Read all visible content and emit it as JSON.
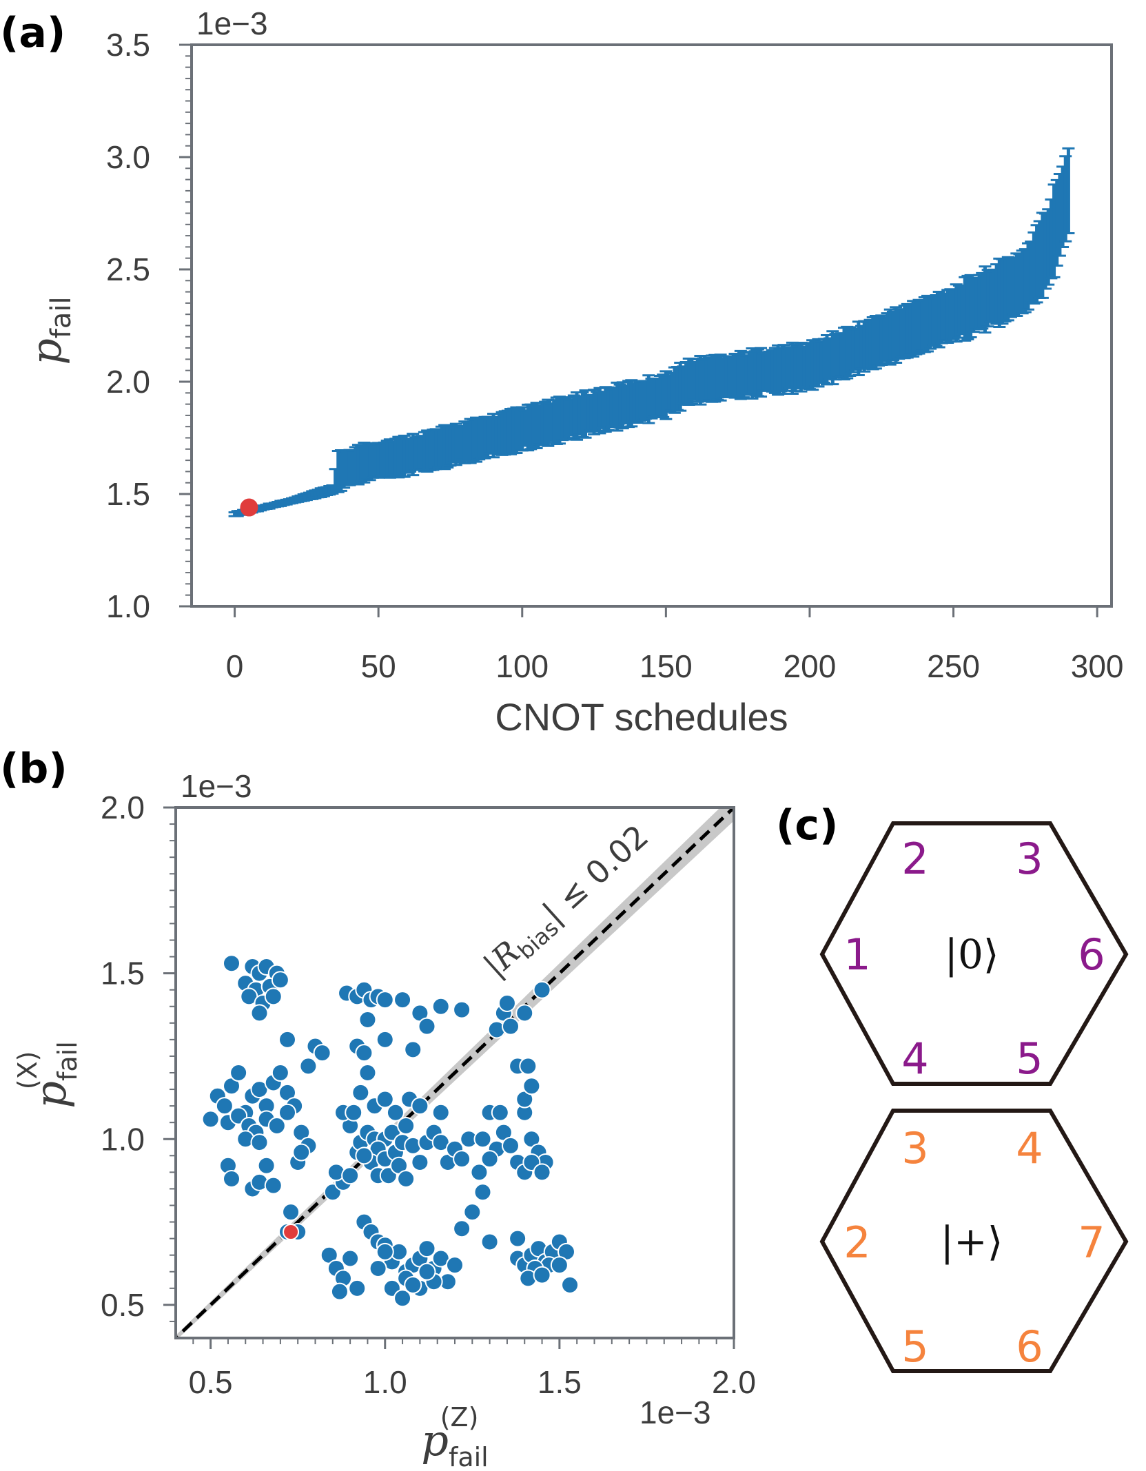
{
  "panels": {
    "a": "(a)",
    "b": "(b)",
    "c": "(c)"
  },
  "colors": {
    "series": "#1f77b4",
    "highlight": "#e03c3c",
    "spine": "#6b7077",
    "purple": "#8b1a8b",
    "orange": "#f5833d",
    "band": "#c8c8c8"
  },
  "chart_data": [
    {
      "type": "scatter",
      "panel": "a",
      "description_type": "errorbar",
      "xlabel": "CNOT schedules",
      "ylabel": "p",
      "ylabel_sub": "fail",
      "y_scale_label": "1e−3",
      "xlim": [
        -15,
        305
      ],
      "ylim": [
        1.0,
        3.5
      ],
      "xticks": [
        0,
        50,
        100,
        150,
        200,
        250,
        300
      ],
      "xtick_labels": [
        "0",
        "50",
        "100",
        "150",
        "200",
        "250",
        "300"
      ],
      "yticks": [
        1.0,
        1.5,
        2.0,
        2.5,
        3.0,
        3.5
      ],
      "ytick_labels": [
        "1.0",
        "1.5",
        "2.0",
        "2.5",
        "3.0",
        "3.5"
      ],
      "n_points": 291,
      "curve_y": [
        [
          0,
          1.41
        ],
        [
          20,
          1.47
        ],
        [
          34,
          1.52
        ],
        [
          36,
          1.6
        ],
        [
          45,
          1.64
        ],
        [
          60,
          1.67
        ],
        [
          100,
          1.79
        ],
        [
          150,
          1.94
        ],
        [
          158,
          2.0
        ],
        [
          200,
          2.07
        ],
        [
          250,
          2.3
        ],
        [
          275,
          2.45
        ],
        [
          283,
          2.6
        ],
        [
          290,
          2.85
        ]
      ],
      "err_half": [
        [
          0,
          0.01
        ],
        [
          20,
          0.01
        ],
        [
          34,
          0.02
        ],
        [
          36,
          0.08
        ],
        [
          100,
          0.09
        ],
        [
          200,
          0.1
        ],
        [
          250,
          0.12
        ],
        [
          275,
          0.14
        ],
        [
          283,
          0.18
        ],
        [
          290,
          0.2
        ]
      ],
      "highlight": {
        "x": 5,
        "y": 1.44
      }
    },
    {
      "type": "scatter",
      "panel": "b",
      "xlabel": "p",
      "xlabel_sub": "fail",
      "xlabel_sup": "(Z)",
      "ylabel": "p",
      "ylabel_sub": "fail",
      "ylabel_sup": "(X)",
      "x_scale_label": "1e−3",
      "y_scale_label": "1e−3",
      "xlim": [
        0.4,
        2.0
      ],
      "ylim": [
        0.4,
        2.0
      ],
      "xticks": [
        0.5,
        1.0,
        1.5,
        2.0
      ],
      "xtick_labels": [
        "0.5",
        "1.0",
        "1.5",
        "2.0"
      ],
      "yticks": [
        0.5,
        1.0,
        1.5,
        2.0
      ],
      "ytick_labels": [
        "0.5",
        "1.0",
        "1.5",
        "2.0"
      ],
      "annotation": {
        "prefix": "|R",
        "sub": "bias",
        "suffix": "| ≤ 0.02"
      },
      "band_rel_halfwidth": 0.02,
      "reference_line": "y = x",
      "points": [
        [
          0.56,
          1.53
        ],
        [
          0.62,
          1.52
        ],
        [
          0.64,
          1.5
        ],
        [
          0.66,
          1.52
        ],
        [
          0.69,
          1.5
        ],
        [
          0.6,
          1.47
        ],
        [
          0.63,
          1.45
        ],
        [
          0.67,
          1.46
        ],
        [
          0.7,
          1.48
        ],
        [
          0.61,
          1.43
        ],
        [
          0.65,
          1.41
        ],
        [
          0.68,
          1.43
        ],
        [
          0.64,
          1.38
        ],
        [
          0.72,
          1.3
        ],
        [
          0.52,
          1.13
        ],
        [
          0.54,
          1.1
        ],
        [
          0.56,
          1.16
        ],
        [
          0.58,
          1.2
        ],
        [
          0.6,
          1.08
        ],
        [
          0.62,
          1.13
        ],
        [
          0.64,
          1.15
        ],
        [
          0.66,
          1.1
        ],
        [
          0.68,
          1.17
        ],
        [
          0.7,
          1.2
        ],
        [
          0.72,
          1.14
        ],
        [
          0.74,
          1.1
        ],
        [
          0.5,
          1.06
        ],
        [
          0.55,
          1.05
        ],
        [
          0.58,
          1.07
        ],
        [
          0.61,
          1.04
        ],
        [
          0.63,
          1.02
        ],
        [
          0.66,
          1.06
        ],
        [
          0.69,
          1.04
        ],
        [
          0.72,
          1.08
        ],
        [
          0.76,
          1.02
        ],
        [
          0.78,
          0.98
        ],
        [
          0.6,
          1.0
        ],
        [
          0.64,
          0.99
        ],
        [
          0.55,
          0.92
        ],
        [
          0.56,
          0.88
        ],
        [
          0.62,
          0.85
        ],
        [
          0.64,
          0.87
        ],
        [
          0.66,
          0.92
        ],
        [
          0.68,
          0.86
        ],
        [
          0.75,
          0.93
        ],
        [
          0.76,
          0.96
        ],
        [
          0.85,
          0.84
        ],
        [
          0.88,
          0.87
        ],
        [
          0.86,
          0.9
        ],
        [
          0.9,
          0.89
        ],
        [
          0.92,
          0.96
        ],
        [
          0.93,
          0.99
        ],
        [
          0.95,
          1.02
        ],
        [
          0.97,
          1.0
        ],
        [
          1.0,
          1.0
        ],
        [
          1.02,
          1.02
        ],
        [
          0.98,
          0.97
        ],
        [
          0.96,
          0.93
        ],
        [
          0.94,
          0.95
        ],
        [
          1.0,
          0.94
        ],
        [
          1.03,
          0.96
        ],
        [
          1.05,
          0.99
        ],
        [
          1.06,
          1.04
        ],
        [
          1.08,
          0.98
        ],
        [
          1.1,
          0.93
        ],
        [
          1.12,
          0.99
        ],
        [
          1.14,
          1.02
        ],
        [
          1.16,
          0.99
        ],
        [
          1.18,
          0.93
        ],
        [
          1.2,
          0.97
        ],
        [
          1.22,
          0.94
        ],
        [
          1.24,
          1.0
        ],
        [
          0.98,
          0.89
        ],
        [
          1.01,
          0.89
        ],
        [
          1.04,
          0.92
        ],
        [
          1.06,
          0.88
        ],
        [
          0.9,
          1.04
        ],
        [
          0.88,
          1.08
        ],
        [
          0.91,
          1.08
        ],
        [
          0.93,
          1.14
        ],
        [
          0.95,
          1.2
        ],
        [
          0.97,
          1.1
        ],
        [
          1.0,
          1.12
        ],
        [
          1.03,
          1.08
        ],
        [
          1.07,
          1.12
        ],
        [
          1.1,
          1.1
        ],
        [
          1.16,
          1.08
        ],
        [
          0.89,
          1.44
        ],
        [
          0.92,
          1.43
        ],
        [
          0.94,
          1.45
        ],
        [
          0.96,
          1.42
        ],
        [
          0.98,
          1.43
        ],
        [
          1.0,
          1.42
        ],
        [
          1.05,
          1.42
        ],
        [
          1.1,
          1.38
        ],
        [
          1.16,
          1.4
        ],
        [
          1.22,
          1.39
        ],
        [
          0.92,
          1.28
        ],
        [
          0.94,
          1.26
        ],
        [
          1.0,
          1.3
        ],
        [
          1.08,
          1.27
        ],
        [
          1.12,
          1.34
        ],
        [
          0.8,
          1.28
        ],
        [
          0.78,
          1.22
        ],
        [
          0.82,
          1.26
        ],
        [
          0.95,
          1.36
        ],
        [
          0.73,
          0.78
        ],
        [
          0.75,
          0.72
        ],
        [
          0.72,
          0.72
        ],
        [
          0.84,
          0.65
        ],
        [
          0.86,
          0.61
        ],
        [
          0.88,
          0.58
        ],
        [
          0.9,
          0.64
        ],
        [
          0.92,
          0.55
        ],
        [
          0.87,
          0.54
        ],
        [
          0.94,
          0.75
        ],
        [
          0.96,
          0.72
        ],
        [
          0.98,
          0.69
        ],
        [
          1.0,
          0.68
        ],
        [
          1.02,
          0.63
        ],
        [
          1.04,
          0.66
        ],
        [
          1.06,
          0.6
        ],
        [
          1.08,
          0.62
        ],
        [
          1.1,
          0.64
        ],
        [
          1.12,
          0.67
        ],
        [
          1.14,
          0.61
        ],
        [
          1.16,
          0.64
        ],
        [
          1.18,
          0.57
        ],
        [
          1.2,
          0.62
        ],
        [
          1.02,
          0.55
        ],
        [
          1.06,
          0.58
        ],
        [
          1.1,
          0.55
        ],
        [
          1.14,
          0.57
        ],
        [
          1.05,
          0.52
        ],
        [
          1.08,
          0.56
        ],
        [
          0.98,
          0.61
        ],
        [
          1.12,
          0.6
        ],
        [
          1.0,
          0.66
        ],
        [
          1.22,
          0.73
        ],
        [
          1.25,
          0.78
        ],
        [
          1.28,
          0.84
        ],
        [
          1.3,
          0.69
        ],
        [
          1.38,
          0.7
        ],
        [
          1.38,
          0.64
        ],
        [
          1.4,
          0.62
        ],
        [
          1.42,
          0.65
        ],
        [
          1.44,
          0.67
        ],
        [
          1.46,
          0.63
        ],
        [
          1.48,
          0.66
        ],
        [
          1.5,
          0.69
        ],
        [
          1.52,
          0.66
        ],
        [
          1.47,
          0.62
        ],
        [
          1.43,
          0.61
        ],
        [
          1.41,
          0.58
        ],
        [
          1.45,
          0.59
        ],
        [
          1.5,
          0.62
        ],
        [
          1.53,
          0.56
        ],
        [
          1.3,
          1.08
        ],
        [
          1.33,
          1.08
        ],
        [
          1.28,
          1.0
        ],
        [
          1.34,
          1.02
        ],
        [
          1.32,
          0.97
        ],
        [
          1.4,
          1.08
        ],
        [
          1.42,
          1.0
        ],
        [
          1.44,
          0.96
        ],
        [
          1.46,
          0.93
        ],
        [
          1.38,
          0.93
        ],
        [
          1.4,
          0.9
        ],
        [
          1.42,
          0.93
        ],
        [
          1.45,
          0.9
        ],
        [
          1.36,
          0.98
        ],
        [
          1.4,
          1.12
        ],
        [
          1.42,
          1.16
        ],
        [
          1.38,
          1.22
        ],
        [
          1.41,
          1.22
        ],
        [
          1.3,
          0.94
        ],
        [
          1.27,
          0.9
        ],
        [
          1.32,
          1.33
        ],
        [
          1.34,
          1.38
        ],
        [
          1.36,
          1.34
        ],
        [
          1.4,
          1.38
        ],
        [
          1.35,
          1.41
        ],
        [
          1.45,
          1.45
        ]
      ],
      "highlight": {
        "x": 0.73,
        "y": 0.72
      }
    }
  ],
  "hexagons": [
    {
      "state": "|0⟩",
      "color_key": "purple",
      "labels": {
        "top_left": "2",
        "top_right": "3",
        "left": "1",
        "right": "6",
        "bottom_left": "4",
        "bottom_right": "5"
      }
    },
    {
      "state": "|+⟩",
      "color_key": "orange",
      "labels": {
        "top_left": "3",
        "top_right": "4",
        "left": "2",
        "right": "7",
        "bottom_left": "5",
        "bottom_right": "6"
      }
    }
  ]
}
